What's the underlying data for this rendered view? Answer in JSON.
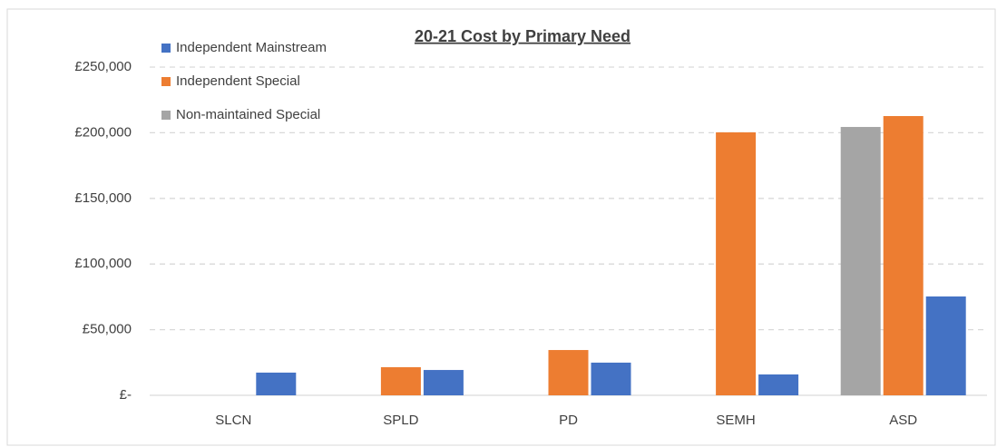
{
  "chart_data": {
    "type": "bar",
    "title": "20-21 Cost by Primary Need",
    "categories": [
      "SLCN",
      "SPLD",
      "PD",
      "SEMH",
      "ASD"
    ],
    "series": [
      {
        "name": "Non-maintained Special",
        "color": "#a5a5a5",
        "values": [
          null,
          null,
          null,
          null,
          204400
        ]
      },
      {
        "name": "Independent Special",
        "color": "#ed7d31",
        "values": [
          null,
          21400,
          34500,
          200300,
          212700
        ]
      },
      {
        "name": "Independent Mainstream",
        "color": "#4472c4",
        "values": [
          17300,
          19300,
          24900,
          15900,
          75300
        ]
      }
    ],
    "ylim": [
      0,
      250000
    ],
    "yticks": [
      {
        "value": 0,
        "label": "£-"
      },
      {
        "value": 50000,
        "label": "£50,000"
      },
      {
        "value": 100000,
        "label": "£100,000"
      },
      {
        "value": 150000,
        "label": "£150,000"
      },
      {
        "value": 200000,
        "label": "£200,000"
      },
      {
        "value": 250000,
        "label": "£250,000"
      }
    ],
    "grid": true,
    "legend": "top-left"
  }
}
